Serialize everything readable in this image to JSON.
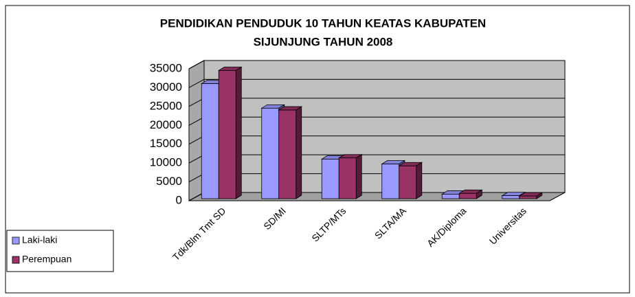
{
  "chart_data": {
    "type": "bar3d",
    "title": [
      "PENDIDIKAN PENDUDUK 10 TAHUN KEATAS KABUPATEN",
      "SIJUNJUNG TAHUN 2008"
    ],
    "categories": [
      "Tdk/Blm Tmt SD",
      "SD/MI",
      "SLTP/MTs",
      "SLTA/MA",
      "AK/Diploma",
      "Universitas"
    ],
    "series": [
      {
        "name": "Laki-laki",
        "color": "#9999ff",
        "values": [
          30500,
          24000,
          10500,
          9200,
          1200,
          800
        ]
      },
      {
        "name": "Perempuan",
        "color": "#993366",
        "values": [
          34000,
          23500,
          10800,
          8700,
          1400,
          700
        ]
      }
    ],
    "ylim": [
      0,
      35000
    ],
    "yticks": [
      0,
      5000,
      10000,
      15000,
      20000,
      25000,
      30000,
      35000
    ],
    "grid": true,
    "legend": "left"
  }
}
